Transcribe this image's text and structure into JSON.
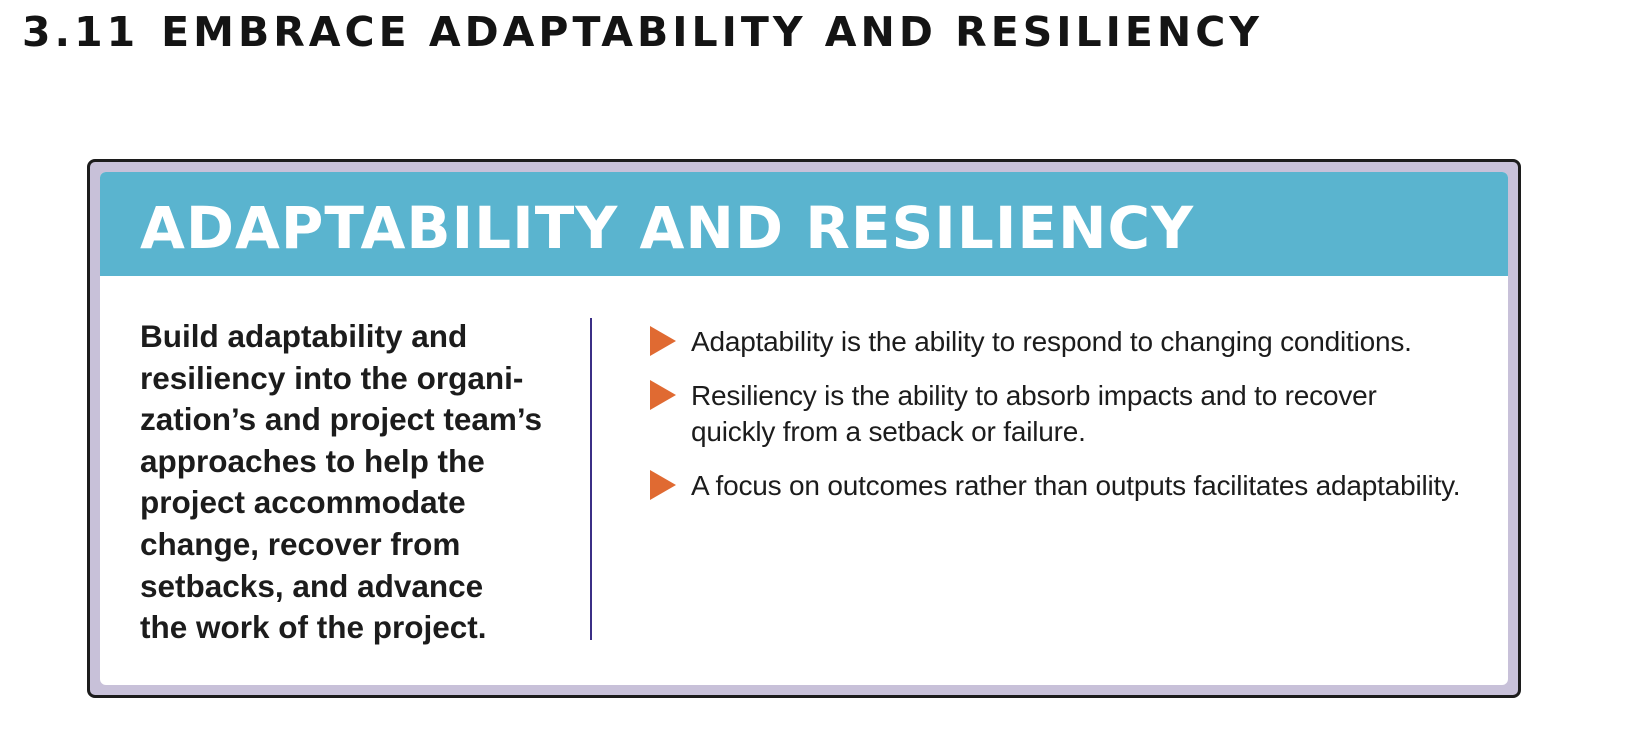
{
  "section": {
    "number": "3.11",
    "title": "EMBRACE ADAPTABILITY AND RESILIENCY"
  },
  "box": {
    "banner_title": "ADAPTABILITY AND RESILIENCY",
    "summary_lines": [
      "Build adaptability and",
      "resiliency into the organi-",
      "zation’s and project team’s",
      "approaches to help the",
      "project accommodate",
      "change, recover from",
      "setbacks, and advance",
      "the work of the project."
    ],
    "bullets": [
      "Adaptability is the ability to respond to changing conditions.",
      "Resiliency is the ability to absorb impacts and to recover quickly from a setback or failure.",
      "A focus on outcomes rather than outputs facilitates adaptability."
    ]
  },
  "colors": {
    "banner": "#5ab4cf",
    "frame": "#c8c1d9",
    "bullet_marker": "#e06a32",
    "divider": "#3b2f86"
  },
  "icons": {
    "bullet_marker": "triangle-right-icon"
  }
}
